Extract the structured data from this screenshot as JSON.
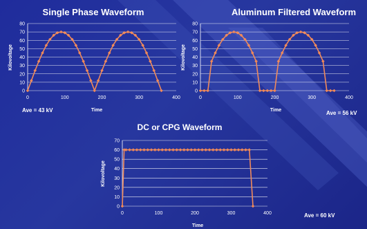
{
  "colors": {
    "line": "#f08a5a",
    "marker": "#f08a5a",
    "grid": "#ffffff",
    "axis": "#ffffff"
  },
  "chart_data": [
    {
      "type": "line",
      "title": "Single Phase Waveform",
      "xlabel": "Time",
      "ylabel": "Kilovoltage",
      "xlim": [
        0,
        400
      ],
      "ylim": [
        0,
        80
      ],
      "xticks": [
        0,
        100,
        200,
        300,
        400
      ],
      "yticks": [
        0,
        10,
        20,
        30,
        40,
        50,
        60,
        70,
        80
      ],
      "grid": true,
      "annotation": "Ave = 43 kV",
      "series": [
        {
          "x": [
            0,
            10,
            20,
            30,
            40,
            50,
            60,
            70,
            80,
            90,
            100,
            110,
            120,
            130,
            140,
            150,
            160,
            170,
            180,
            190,
            200,
            210,
            220,
            230,
            240,
            250,
            260,
            270,
            280,
            290,
            300,
            310,
            320,
            330,
            340,
            350,
            360
          ],
          "y": [
            0,
            12,
            24,
            35,
            45,
            54,
            61,
            66,
            69,
            70,
            69,
            66,
            61,
            54,
            45,
            35,
            24,
            12,
            0,
            12,
            24,
            35,
            45,
            54,
            61,
            66,
            69,
            70,
            69,
            66,
            61,
            54,
            45,
            35,
            24,
            12,
            0
          ]
        }
      ]
    },
    {
      "type": "line",
      "title": "Aluminum Filtered Waveform",
      "xlabel": "Time",
      "ylabel": "Kilovoltage",
      "xlim": [
        0,
        400
      ],
      "ylim": [
        0,
        80
      ],
      "xticks": [
        0,
        100,
        200,
        300,
        400
      ],
      "yticks": [
        0,
        10,
        20,
        30,
        40,
        50,
        60,
        70,
        80
      ],
      "grid": true,
      "annotation": "Ave = 56 kV",
      "series": [
        {
          "x": [
            0,
            10,
            20,
            30,
            40,
            50,
            60,
            70,
            80,
            90,
            100,
            110,
            120,
            130,
            140,
            150,
            160,
            170,
            180,
            190,
            200,
            210,
            220,
            230,
            240,
            250,
            260,
            270,
            280,
            290,
            300,
            310,
            320,
            330,
            340,
            350,
            360
          ],
          "y": [
            0,
            0,
            0,
            35,
            45,
            54,
            61,
            66,
            69,
            70,
            69,
            66,
            61,
            54,
            45,
            35,
            0,
            0,
            0,
            0,
            0,
            35,
            45,
            54,
            61,
            66,
            69,
            70,
            69,
            66,
            61,
            54,
            45,
            35,
            0,
            0,
            0
          ]
        }
      ]
    },
    {
      "type": "line",
      "title": "DC or CPG Waveform",
      "xlabel": "Time",
      "ylabel": "Kilovoltage",
      "xlim": [
        0,
        400
      ],
      "ylim": [
        0,
        70
      ],
      "xticks": [
        0,
        100,
        200,
        300,
        400
      ],
      "yticks": [
        0,
        10,
        20,
        30,
        40,
        50,
        60,
        70
      ],
      "grid": true,
      "annotation": "Ave = 60 kV",
      "series": [
        {
          "x": [
            0,
            5,
            10,
            20,
            30,
            40,
            50,
            60,
            70,
            80,
            90,
            100,
            110,
            120,
            130,
            140,
            150,
            160,
            170,
            180,
            190,
            200,
            210,
            220,
            230,
            240,
            250,
            260,
            270,
            280,
            290,
            300,
            310,
            320,
            330,
            340,
            350,
            360
          ],
          "y": [
            0,
            60,
            60,
            60,
            60,
            60,
            60,
            60,
            60,
            60,
            60,
            60,
            60,
            60,
            60,
            60,
            60,
            60,
            60,
            60,
            60,
            60,
            60,
            60,
            60,
            60,
            60,
            60,
            60,
            60,
            60,
            60,
            60,
            60,
            60,
            60,
            60,
            0
          ]
        }
      ]
    }
  ]
}
